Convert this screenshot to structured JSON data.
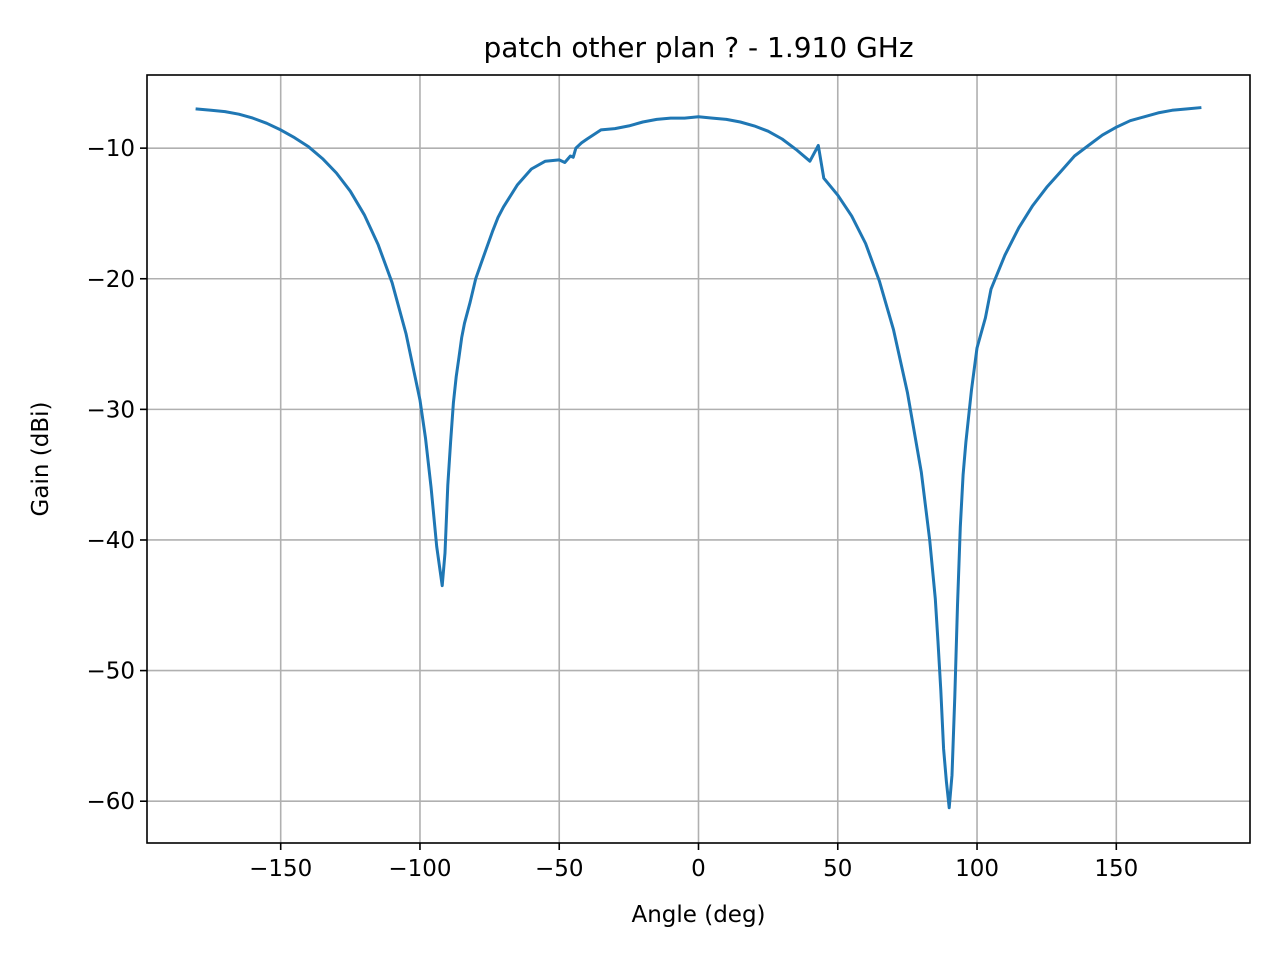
{
  "chart_data": {
    "type": "line",
    "title": "patch other plan ? - 1.910 GHz",
    "xlabel": "Angle (deg)",
    "ylabel": "Gain (dBi)",
    "xlim": [
      -198,
      198
    ],
    "ylim": [
      -63.2,
      -4.4
    ],
    "xticks": [
      -150,
      -100,
      -50,
      0,
      50,
      100,
      150
    ],
    "xtick_labels": [
      "−150",
      "−100",
      "−50",
      "0",
      "50",
      "100",
      "150"
    ],
    "yticks": [
      -10,
      -20,
      -30,
      -40,
      -50,
      -60
    ],
    "ytick_labels": [
      "−10",
      "−20",
      "−30",
      "−40",
      "−50",
      "−60"
    ],
    "grid": true,
    "line_color": "#1f77b4",
    "series": [
      {
        "x": [
          -180,
          -175,
          -170,
          -165,
          -160,
          -155,
          -150,
          -145,
          -140,
          -135,
          -130,
          -125,
          -120,
          -115,
          -110,
          -105,
          -100,
          -98,
          -96,
          -94,
          -92,
          -91,
          -90,
          -89,
          -88,
          -87,
          -86,
          -85,
          -84,
          -82,
          -80,
          -78,
          -76,
          -74,
          -72,
          -70,
          -65,
          -60,
          -55,
          -50,
          -48,
          -46,
          -45,
          -44,
          -42,
          -40,
          -35,
          -30,
          -25,
          -20,
          -15,
          -10,
          -5,
          0,
          5,
          10,
          15,
          20,
          25,
          30,
          35,
          40,
          43,
          45,
          50,
          55,
          60,
          65,
          70,
          75,
          80,
          83,
          85,
          86,
          87,
          88,
          89,
          90,
          91,
          92,
          93,
          94,
          95,
          96,
          97,
          98,
          100,
          103,
          105,
          110,
          115,
          120,
          125,
          130,
          135,
          140,
          145,
          150,
          155,
          160,
          165,
          170,
          175,
          180
        ],
        "y": [
          -7.0,
          -7.1,
          -7.2,
          -7.4,
          -7.7,
          -8.1,
          -8.6,
          -9.2,
          -9.9,
          -10.8,
          -11.9,
          -13.3,
          -15.1,
          -17.4,
          -20.3,
          -24.2,
          -29.3,
          -32.2,
          -36.0,
          -40.5,
          -43.5,
          -41.0,
          -35.8,
          -32.5,
          -29.5,
          -27.5,
          -26.0,
          -24.5,
          -23.4,
          -21.8,
          -20.0,
          -18.8,
          -17.6,
          -16.4,
          -15.3,
          -14.5,
          -12.8,
          -11.6,
          -11.0,
          -10.9,
          -11.1,
          -10.6,
          -10.7,
          -10.0,
          -9.6,
          -9.3,
          -8.6,
          -8.5,
          -8.3,
          -8.0,
          -7.8,
          -7.7,
          -7.7,
          -7.6,
          -7.7,
          -7.8,
          -8.0,
          -8.3,
          -8.7,
          -9.3,
          -10.1,
          -11.0,
          -9.8,
          -12.3,
          -13.6,
          -15.2,
          -17.3,
          -20.2,
          -23.9,
          -28.7,
          -34.8,
          -40.0,
          -44.5,
          -47.8,
          -51.5,
          -56.0,
          -58.5,
          -60.5,
          -58.0,
          -52.0,
          -45.0,
          -39.0,
          -35.0,
          -32.5,
          -30.5,
          -28.5,
          -25.3,
          -23.0,
          -20.8,
          -18.2,
          -16.1,
          -14.4,
          -13.0,
          -11.8,
          -10.6,
          -9.8,
          -9.0,
          -8.4,
          -7.9,
          -7.6,
          -7.3,
          -7.1,
          -7.0,
          -6.9
        ]
      }
    ]
  }
}
